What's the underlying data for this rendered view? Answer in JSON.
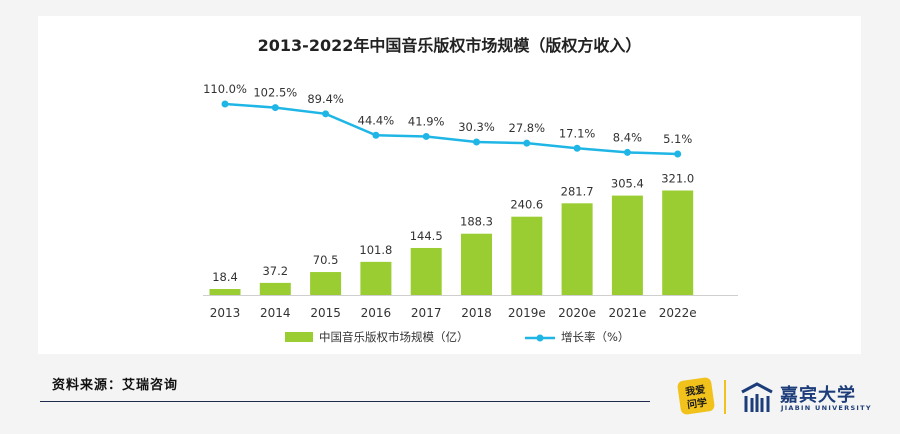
{
  "chart_data": {
    "type": "bar+line",
    "title": "2013-2022年中国音乐版权市场规模（版权方收入）",
    "categories": [
      "2013",
      "2014",
      "2015",
      "2016",
      "2017",
      "2018",
      "2019e",
      "2020e",
      "2021e",
      "2022e"
    ],
    "series": [
      {
        "name": "中国音乐版权市场规模（亿）",
        "kind": "bar",
        "color": "#9acd32",
        "values": [
          18.4,
          37.2,
          70.5,
          101.8,
          144.5,
          188.3,
          240.6,
          281.7,
          305.4,
          321.0
        ],
        "labels": [
          "18.4",
          "37.2",
          "70.5",
          "101.8",
          "144.5",
          "188.3",
          "240.6",
          "281.7",
          "305.4",
          "321.0"
        ]
      },
      {
        "name": "增长率（%）",
        "kind": "line",
        "color": "#1fb6e6",
        "values": [
          110.0,
          102.5,
          89.4,
          44.4,
          41.9,
          30.3,
          27.8,
          17.1,
          8.4,
          5.1
        ],
        "labels": [
          "110.0%",
          "102.5%",
          "89.4%",
          "44.4%",
          "41.9%",
          "30.3%",
          "27.8%",
          "17.1%",
          "8.4%",
          "5.1%"
        ]
      }
    ],
    "grid": false,
    "legend": "bottom"
  },
  "footer": {
    "source": "资料来源：艾瑞咨询"
  },
  "brand": {
    "badge": "我爱问学",
    "name": "嘉宾大学",
    "subtitle": "JIABIN UNIVERSITY"
  }
}
